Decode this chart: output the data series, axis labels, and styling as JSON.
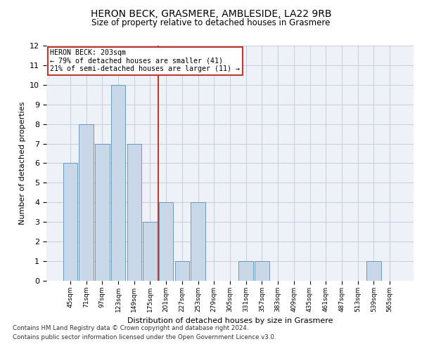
{
  "title": "HERON BECK, GRASMERE, AMBLESIDE, LA22 9RB",
  "subtitle": "Size of property relative to detached houses in Grasmere",
  "xlabel": "Distribution of detached houses by size in Grasmere",
  "ylabel": "Number of detached properties",
  "categories": [
    "45sqm",
    "71sqm",
    "97sqm",
    "123sqm",
    "149sqm",
    "175sqm",
    "201sqm",
    "227sqm",
    "253sqm",
    "279sqm",
    "305sqm",
    "331sqm",
    "357sqm",
    "383sqm",
    "409sqm",
    "435sqm",
    "461sqm",
    "487sqm",
    "513sqm",
    "539sqm",
    "565sqm"
  ],
  "values": [
    6,
    8,
    7,
    10,
    7,
    3,
    4,
    1,
    4,
    0,
    0,
    1,
    1,
    0,
    0,
    0,
    0,
    0,
    0,
    1,
    0
  ],
  "bar_color": "#c8d8e8",
  "bar_edge_color": "#5b8db8",
  "heron_beck_index": 6,
  "heron_beck_label": "HERON BECK: 203sqm\n← 79% of detached houses are smaller (41)\n21% of semi-detached houses are larger (11) →",
  "vline_color": "#c0392b",
  "annotation_box_edge_color": "#c0392b",
  "ylim": [
    0,
    12
  ],
  "yticks": [
    0,
    1,
    2,
    3,
    4,
    5,
    6,
    7,
    8,
    9,
    10,
    11,
    12
  ],
  "grid_color": "#c0c8d8",
  "background_color": "#eef2f8",
  "footnote1": "Contains HM Land Registry data © Crown copyright and database right 2024.",
  "footnote2": "Contains public sector information licensed under the Open Government Licence v3.0."
}
